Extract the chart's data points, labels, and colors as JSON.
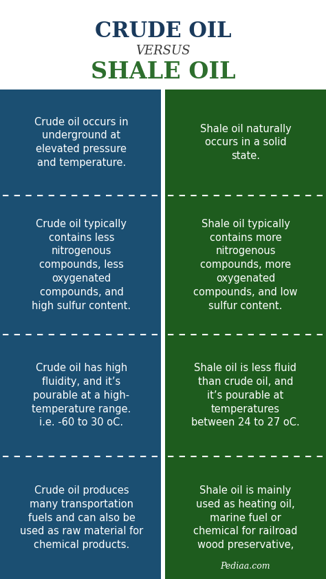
{
  "title_line1": "CRUDE OIL",
  "title_line2": "VERSUS",
  "title_line3": "SHALE OIL",
  "title_color1": "#1a3a5c",
  "title_color2": "#3a3a3a",
  "title_color3": "#2d6e2d",
  "bg_color": "#ffffff",
  "left_color": "#1b4f72",
  "right_color": "#1e5c1e",
  "text_color": "#ffffff",
  "divider_color": "#ffffff",
  "footer_text": "Pediaa.com",
  "rows": [
    {
      "left": "Crude oil occurs in\nunderground at\nelevated pressure\nand temperature.",
      "right": "Shale oil naturally\noccurs in a solid\nstate."
    },
    {
      "left": "Crude oil typically\ncontains less\nnitrogenous\ncompounds, less\noxygenated\ncompounds, and\nhigh sulfur content.",
      "right": "Shale oil typically\ncontains more\nnitrogenous\ncompounds, more\noxygenated\ncompounds, and low\nsulfur content."
    },
    {
      "left": "Crude oil has high\nfluidity, and it’s\npourable at a high-\ntemperature range.\ni.e. -60 to 30 oC.",
      "right": "Shale oil is less fluid\nthan crude oil, and\nit’s pourable at\ntemperatures\nbetween 24 to 27 oC."
    },
    {
      "left": "Crude oil produces\nmany transportation\nfuels and can also be\nused as raw material for\nchemical products.",
      "right": "Shale oil is mainly\nused as heating oil,\nmarine fuel or\nchemical for railroad\nwood preservative,"
    }
  ]
}
